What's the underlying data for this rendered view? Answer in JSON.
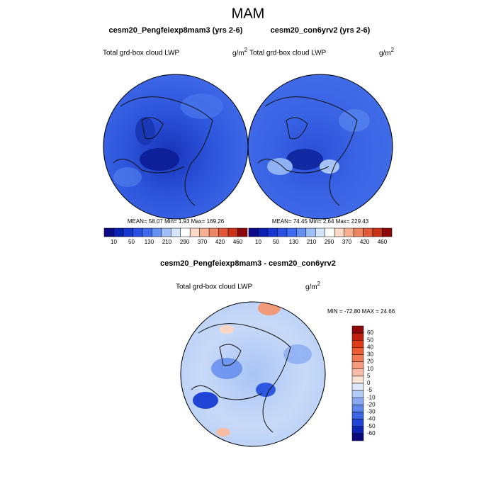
{
  "title": "MAM",
  "panels": [
    {
      "title": "cesm20_Pengfeiexp8mam3 (yrs 2-6)",
      "left_label": "Total grd-box cloud LWP",
      "units": "g/m",
      "units_power": "2",
      "stats": "MEAN=  58.07  Min=   1.93  Max= 169.26"
    },
    {
      "title": "cesm20_con6yrv2 (yrs 2-6)",
      "left_label": "Total grd-box cloud LWP",
      "units": "g/m",
      "units_power": "2",
      "stats": "MEAN=  74.45  Min=   2.64  Max= 229.43"
    }
  ],
  "colorbar": {
    "labels": [
      "10",
      "50",
      "130",
      "210",
      "290",
      "370",
      "420",
      "460"
    ],
    "colors": [
      "#0c0c8a",
      "#0a1fb4",
      "#1736d2",
      "#2a4fe4",
      "#3f69ee",
      "#6390f2",
      "#9dbdf6",
      "#d4e4fa",
      "#ffffff",
      "#fbd9c6",
      "#f5b093",
      "#ee8561",
      "#e2593a",
      "#c83219",
      "#8c0a0a"
    ]
  },
  "difference": {
    "title": "cesm20_Pengfeiexp8mam3 - cesm20_con6yrv2",
    "left_label": "Total grd-box cloud LWP",
    "units": "g/m",
    "units_power": "2",
    "stats": "MIN = -72.80 MAX =  24.66",
    "colorbar": {
      "labels": [
        "60",
        "50",
        "40",
        "30",
        "20",
        "10",
        "5",
        "0",
        "-5",
        "-10",
        "-20",
        "-30",
        "-40",
        "-50",
        "-60"
      ],
      "colors": [
        "#8c0a0a",
        "#c2200e",
        "#e03c1c",
        "#ee5a32",
        "#f27a54",
        "#f59a7a",
        "#f8bca4",
        "#fbe2d6",
        "#dfe9fa",
        "#b4cdf7",
        "#87aaf2",
        "#5e88ee",
        "#3a66e6",
        "#1f44d6",
        "#0e24b2",
        "#0a0a7e"
      ]
    }
  }
}
